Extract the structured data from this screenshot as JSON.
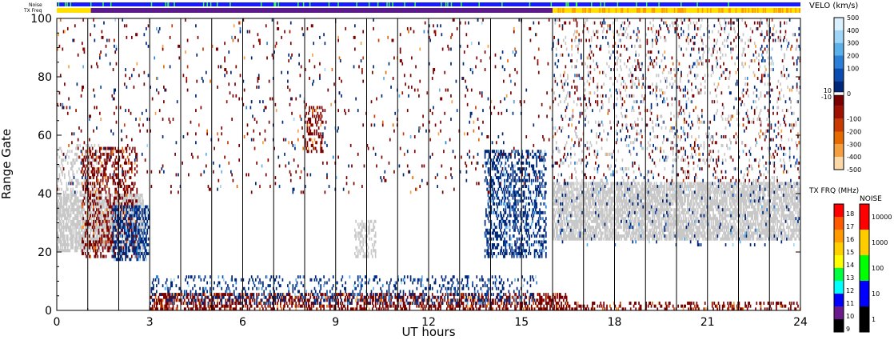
{
  "strip_labels": {
    "noise": "Noise",
    "tx_freq": "TX Freq"
  },
  "chart_data": {
    "type": "heatmap",
    "title": "",
    "xlabel": "UT hours",
    "ylabel": "Range Gate",
    "xlim": [
      0,
      24
    ],
    "ylim": [
      0,
      100
    ],
    "x_ticks": [
      0,
      3,
      6,
      9,
      12,
      15,
      18,
      21,
      24
    ],
    "y_ticks": [
      0,
      20,
      40,
      60,
      80,
      100
    ],
    "vertical_lines_at_hours": [
      1,
      2,
      3,
      4,
      5,
      6,
      7,
      8,
      9,
      10,
      11,
      12,
      13,
      14,
      15,
      16,
      17,
      18,
      19,
      20,
      21,
      22,
      23
    ],
    "velocity_colorbar": {
      "title": "VELO (km/s)",
      "positive_ticks": [
        500,
        400,
        300,
        200,
        100,
        10
      ],
      "zero_label": "0",
      "negative_ticks": [
        -10,
        -100,
        -200,
        -300,
        -400,
        -500
      ],
      "positive_colors": [
        "#d9f0ff",
        "#9ed4f5",
        "#5cb0ea",
        "#2c7fd6",
        "#0a4cb0",
        "#00287a"
      ],
      "negative_colors": [
        "#7a0000",
        "#a01000",
        "#c83a00",
        "#e56a00",
        "#f5a040",
        "#fbd8a8"
      ]
    },
    "txfreq_colorbar": {
      "title": "TX FRQ (MHz)",
      "ticks": [
        18,
        17,
        16,
        15,
        14,
        13,
        12,
        11,
        10,
        9
      ],
      "colors": [
        "#ff0000",
        "#ff5a00",
        "#ff9a00",
        "#ffd000",
        "#ffff00",
        "#00ff40",
        "#00ffff",
        "#0000ff",
        "#6a1a8a",
        "#000000"
      ]
    },
    "noise_colorbar": {
      "title": "NOISE",
      "ticks": [
        10000,
        1000,
        100,
        10,
        1
      ],
      "colors": [
        "#ff0000",
        "#ffcc00",
        "#00ff00",
        "#0000ff",
        "#000000"
      ]
    },
    "ground_scatter_color": "#c8c8c8",
    "echo_regions": [
      {
        "name": "ground-scatter-early",
        "t0": 0.0,
        "t1": 2.8,
        "g0": 20,
        "g1": 40,
        "kind": "ground",
        "density": 0.7
      },
      {
        "name": "ground-scatter-early-upper",
        "t0": 0.0,
        "t1": 1.6,
        "g0": 40,
        "g1": 57,
        "kind": "ground",
        "density": 0.25
      },
      {
        "name": "negative-velocity-0-3h",
        "t0": 0.8,
        "t1": 2.6,
        "g0": 18,
        "g1": 56,
        "kind": "neg",
        "density": 0.3
      },
      {
        "name": "positive-velocity-2-3h",
        "t0": 1.8,
        "t1": 3.0,
        "g0": 17,
        "g1": 36,
        "kind": "pos",
        "density": 0.45
      },
      {
        "name": "near-range-negative",
        "t0": 3.0,
        "t1": 16.5,
        "g0": 0,
        "g1": 6,
        "kind": "neg",
        "density": 0.45
      },
      {
        "name": "near-range-positive",
        "t0": 3.0,
        "t1": 15.5,
        "g0": 2,
        "g1": 12,
        "kind": "pos",
        "density": 0.18
      },
      {
        "name": "patch-9-10h",
        "t0": 9.6,
        "t1": 10.3,
        "g0": 18,
        "g1": 31,
        "kind": "ground",
        "density": 0.4
      },
      {
        "name": "patch-8h",
        "t0": 8.0,
        "t1": 8.6,
        "g0": 54,
        "g1": 70,
        "kind": "neg",
        "density": 0.3
      },
      {
        "name": "positive-arc-14-15h",
        "t0": 13.8,
        "t1": 15.8,
        "g0": 18,
        "g1": 55,
        "kind": "pos",
        "density": 0.35
      },
      {
        "name": "ground-scatter-late",
        "t0": 16.0,
        "t1": 24.0,
        "g0": 24,
        "g1": 44,
        "kind": "ground",
        "density": 0.7
      },
      {
        "name": "scattered-late-positive",
        "t0": 16.0,
        "t1": 24.0,
        "g0": 22,
        "g1": 100,
        "kind": "pos",
        "density": 0.03
      },
      {
        "name": "scattered-late-negative",
        "t0": 16.0,
        "t1": 24.0,
        "g0": 44,
        "g1": 100,
        "kind": "neg",
        "density": 0.04
      },
      {
        "name": "scattered-late-ground",
        "t0": 16.0,
        "t1": 24.0,
        "g0": 44,
        "g1": 100,
        "kind": "ground",
        "density": 0.05
      },
      {
        "name": "near-range-late-negative",
        "t0": 16.0,
        "t1": 24.0,
        "g0": 0,
        "g1": 3,
        "kind": "neg",
        "density": 0.3
      },
      {
        "name": "sparse-background-negative",
        "t0": 0.0,
        "t1": 16.0,
        "g0": 40,
        "g1": 100,
        "kind": "neg",
        "density": 0.02
      },
      {
        "name": "sparse-background-positive",
        "t0": 0.0,
        "t1": 16.0,
        "g0": 40,
        "g1": 100,
        "kind": "pos",
        "density": 0.01
      }
    ],
    "noise_strip": {
      "dominant": "blue",
      "sparse_colors": [
        "green"
      ]
    },
    "txfreq_strip": [
      {
        "t0": 0.0,
        "t1": 1.1,
        "color": "yellow"
      },
      {
        "t0": 1.1,
        "t1": 16.0,
        "color": "purple"
      },
      {
        "t0": 16.0,
        "t1": 24.0,
        "color": "yellow"
      }
    ]
  }
}
